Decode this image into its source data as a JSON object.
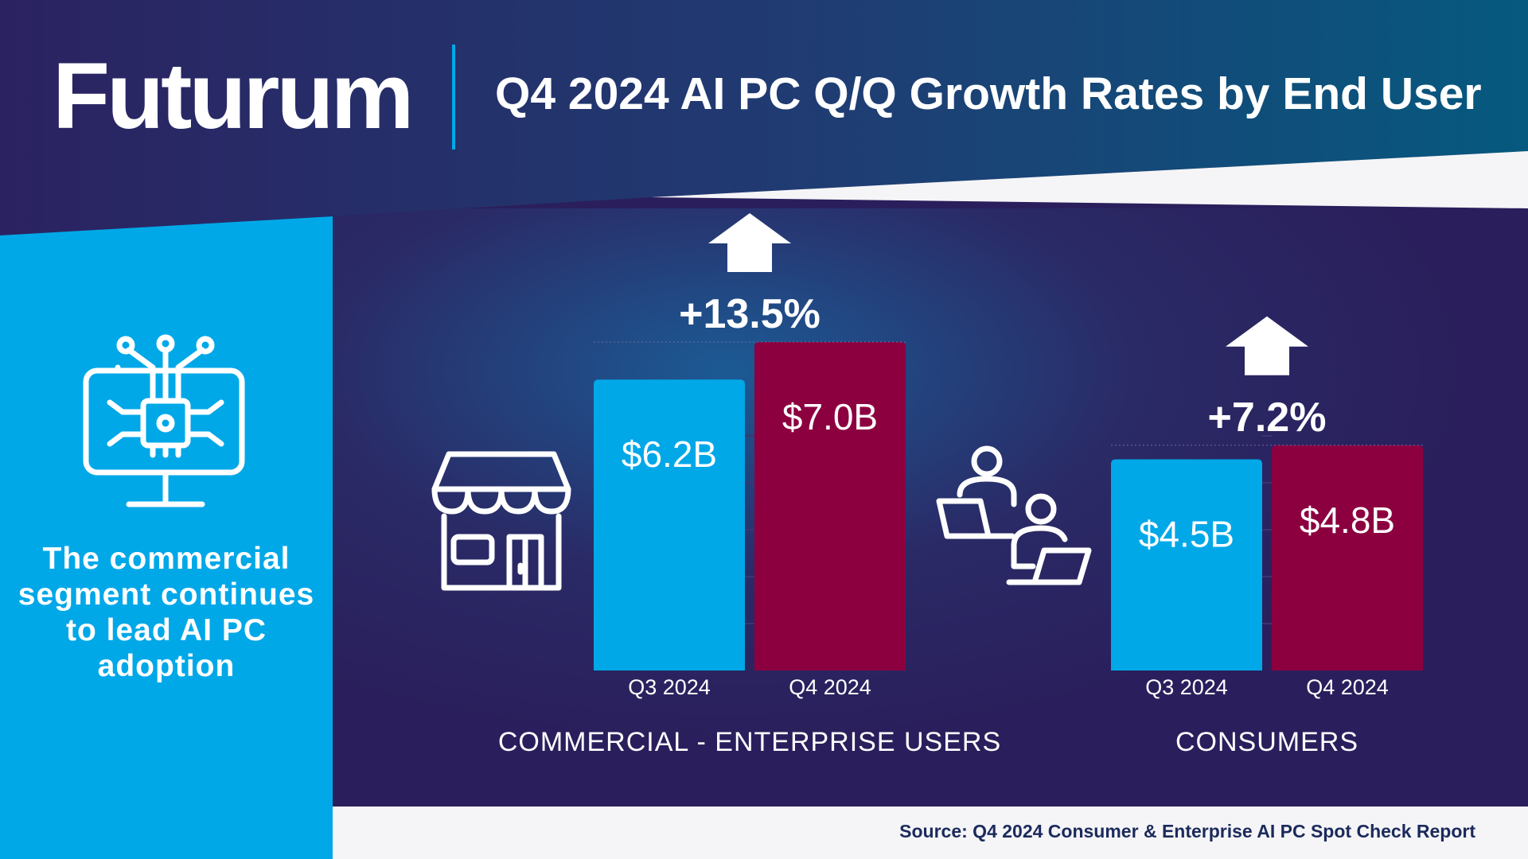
{
  "header": {
    "logo": "Futurum",
    "title": "Q4 2024 AI PC Q/Q Growth Rates by End User"
  },
  "sidebar": {
    "text": "The commercial segment continues to lead AI PC adoption"
  },
  "footer": {
    "source": "Source: Q4 2024 Consumer & Enterprise AI PC Spot Check Report"
  },
  "colors": {
    "q3": "#00a8e8",
    "q4": "#8c0040",
    "accent": "#00a8e8",
    "background": "#2a1f5c",
    "sidebar": "#00a8e8"
  },
  "icons": {
    "sidebar": "ai-chip-monitor-icon",
    "commercial": "storefront-icon",
    "consumers": "people-laptops-icon",
    "growth": "up-arrow-icon"
  },
  "chart_data": {
    "type": "bar",
    "title": "Q4 2024 AI PC Q/Q Growth Rates by End User",
    "categories": [
      "Q3 2024",
      "Q4 2024"
    ],
    "unit": "$B",
    "ylim": [
      0,
      7.0
    ],
    "grid": false,
    "groups": [
      {
        "name": "COMMERCIAL - ENTERPRISE USERS",
        "growth_label": "+13.5%",
        "values": [
          6.2,
          7.0
        ],
        "value_labels": [
          "$6.2B",
          "$7.0B"
        ]
      },
      {
        "name": "CONSUMERS",
        "growth_label": "+7.2%",
        "values": [
          4.5,
          4.8
        ],
        "value_labels": [
          "$4.5B",
          "$4.8B"
        ]
      }
    ]
  }
}
